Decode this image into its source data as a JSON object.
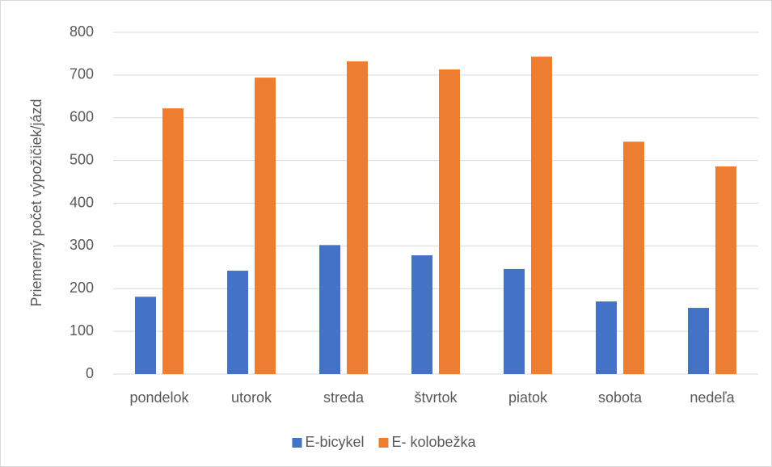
{
  "chart_data": {
    "type": "bar",
    "y_label": "Priemerný počet výpožičiek/jázd",
    "categories": [
      "pondelok",
      "utorok",
      "streda",
      "štvrtok",
      "piatok",
      "sobota",
      "nedeľa"
    ],
    "series": [
      {
        "name": "E-bicykel",
        "color": "#4472c4",
        "values": [
          181,
          242,
          302,
          278,
          246,
          170,
          155
        ]
      },
      {
        "name": "E- kolobežka",
        "color": "#ed7d31",
        "values": [
          622,
          694,
          732,
          713,
          743,
          544,
          486
        ]
      }
    ],
    "ylim": [
      0,
      800
    ],
    "yticks": [
      0,
      100,
      200,
      300,
      400,
      500,
      600,
      700,
      800
    ],
    "grid": true,
    "legend": "bottom"
  }
}
